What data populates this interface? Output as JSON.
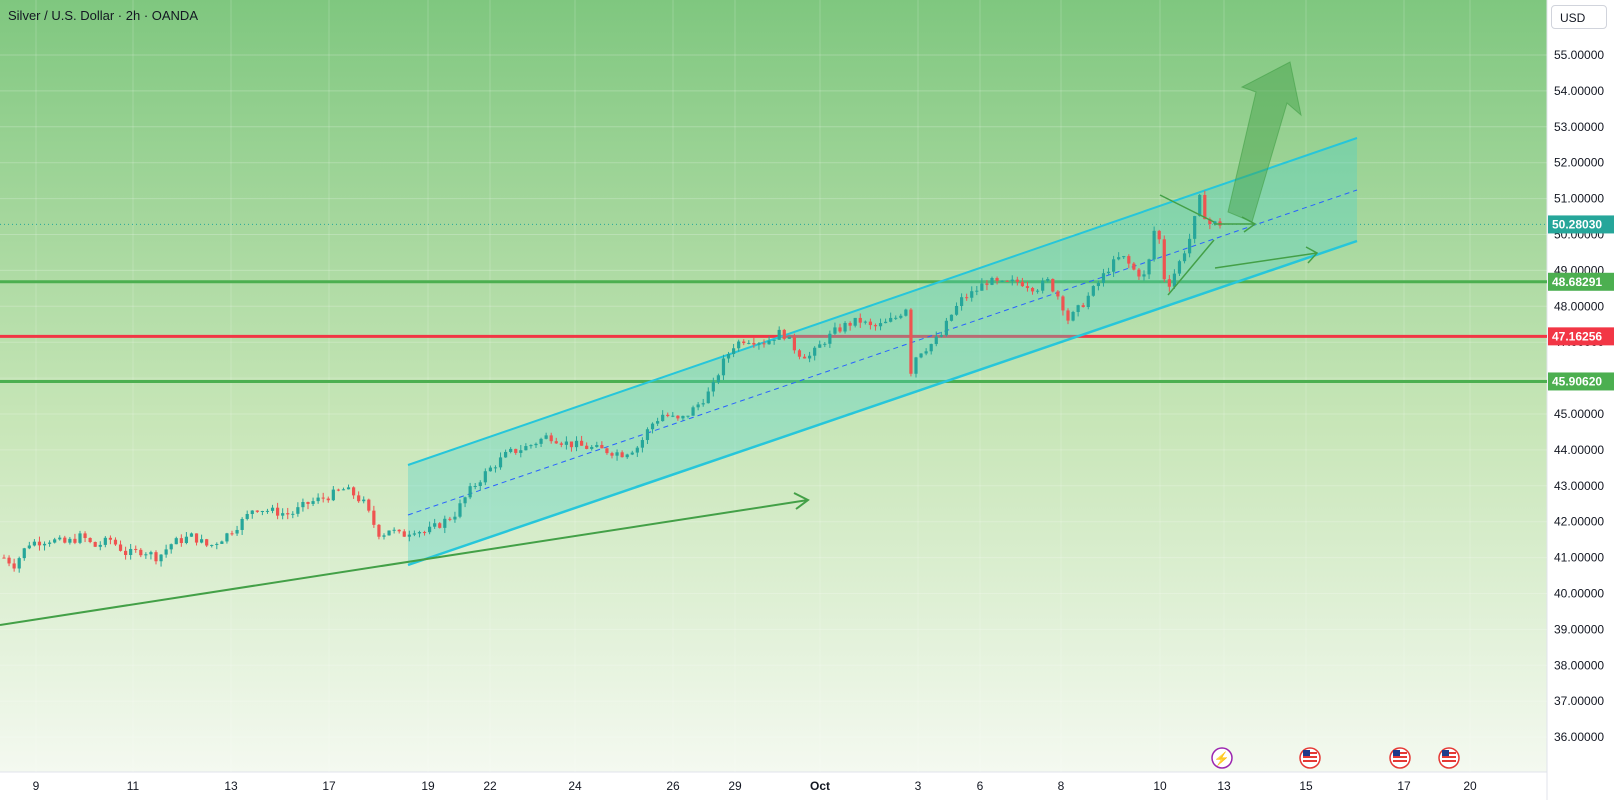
{
  "header": {
    "title": "Silver / U.S. Dollar · 2h · OANDA",
    "currency_button": "USD"
  },
  "colors": {
    "bg_top": "#7fc77f",
    "bg_bottom": "#f4f9f0",
    "channel": "#26c6da",
    "channel_fill": "#4dd0c8",
    "up_candle": "#26a69a",
    "down_candle": "#ef5350",
    "support_green": "#4caf50",
    "resistance_red": "#f23645",
    "arrow_green": "#43a047",
    "last_price_bg": "#26a69a"
  },
  "chart_data": {
    "type": "candlestick",
    "symbol": "Silver / U.S. Dollar",
    "interval": "2h",
    "source": "OANDA",
    "ylim": [
      35.8,
      56.0
    ],
    "y_ticks": [
      "55.00000",
      "54.00000",
      "53.00000",
      "52.00000",
      "51.00000",
      "50.00000",
      "49.00000",
      "48.00000",
      "47.00000",
      "46.00000",
      "45.00000",
      "44.00000",
      "43.00000",
      "42.00000",
      "41.00000",
      "40.00000",
      "39.00000",
      "38.00000",
      "37.00000",
      "36.00000"
    ],
    "x_ticks": [
      "9",
      "11",
      "13",
      "17",
      "19",
      "22",
      "24",
      "26",
      "29",
      "Oct",
      "3",
      "6",
      "8",
      "10",
      "13",
      "15",
      "17",
      "20"
    ],
    "price_labels": [
      {
        "value": 50.2803,
        "text": "50.28030",
        "kind": "last"
      },
      {
        "value": 48.68291,
        "text": "48.68291",
        "kind": "support"
      },
      {
        "value": 47.16256,
        "text": "47.16256",
        "kind": "resistance"
      },
      {
        "value": 45.9062,
        "text": "45.90620",
        "kind": "support"
      }
    ],
    "horizontal_lines": [
      {
        "value": 48.68291,
        "color": "#4caf50"
      },
      {
        "value": 47.16256,
        "color": "#f23645"
      },
      {
        "value": 45.9062,
        "color": "#4caf50"
      }
    ],
    "close_path": [
      [
        0,
        41.0
      ],
      [
        5,
        40.8
      ],
      [
        12,
        41.4
      ],
      [
        22,
        41.5
      ],
      [
        30,
        41.4
      ],
      [
        38,
        41.6
      ],
      [
        44,
        41.3
      ],
      [
        52,
        41.5
      ],
      [
        60,
        41.1
      ],
      [
        68,
        41.2
      ],
      [
        75,
        41.0
      ],
      [
        82,
        41.4
      ],
      [
        92,
        41.6
      ],
      [
        100,
        41.3
      ],
      [
        108,
        41.6
      ],
      [
        118,
        42.1
      ],
      [
        122,
        42.4
      ],
      [
        130,
        42.3
      ],
      [
        140,
        42.2
      ],
      [
        148,
        42.5
      ],
      [
        158,
        42.7
      ],
      [
        166,
        42.9
      ],
      [
        170,
        42.8
      ],
      [
        176,
        42.5
      ],
      [
        180,
        42.0
      ],
      [
        184,
        41.6
      ],
      [
        188,
        41.8
      ],
      [
        194,
        41.6
      ],
      [
        200,
        41.8
      ],
      [
        206,
        41.7
      ],
      [
        212,
        41.9
      ],
      [
        220,
        42.2
      ],
      [
        228,
        42.9
      ],
      [
        236,
        43.4
      ],
      [
        246,
        43.9
      ],
      [
        256,
        44.1
      ],
      [
        266,
        44.4
      ],
      [
        274,
        44.2
      ],
      [
        282,
        44.1
      ],
      [
        292,
        44.0
      ],
      [
        302,
        43.9
      ],
      [
        310,
        44.1
      ],
      [
        316,
        44.7
      ],
      [
        322,
        45.0
      ],
      [
        330,
        44.8
      ],
      [
        338,
        45.2
      ],
      [
        346,
        45.7
      ],
      [
        350,
        46.3
      ],
      [
        356,
        46.9
      ],
      [
        362,
        47.1
      ],
      [
        372,
        47.0
      ],
      [
        380,
        47.3
      ],
      [
        388,
        46.7
      ],
      [
        394,
        46.6
      ],
      [
        400,
        47.0
      ],
      [
        406,
        47.3
      ],
      [
        412,
        47.5
      ],
      [
        418,
        47.6
      ],
      [
        424,
        47.4
      ],
      [
        430,
        47.5
      ],
      [
        436,
        47.7
      ],
      [
        441,
        48.0
      ],
      [
        443,
        46.2
      ],
      [
        446,
        46.7
      ],
      [
        452,
        46.9
      ],
      [
        458,
        47.2
      ],
      [
        462,
        47.7
      ],
      [
        468,
        48.2
      ],
      [
        474,
        48.4
      ],
      [
        480,
        48.7
      ],
      [
        488,
        48.6
      ],
      [
        496,
        48.7
      ],
      [
        504,
        48.5
      ],
      [
        510,
        48.7
      ],
      [
        516,
        48.2
      ],
      [
        520,
        47.6
      ],
      [
        526,
        48.0
      ],
      [
        534,
        48.6
      ],
      [
        540,
        49.1
      ],
      [
        546,
        49.4
      ],
      [
        552,
        49.0
      ],
      [
        558,
        48.8
      ],
      [
        563,
        50.5
      ],
      [
        566,
        49.0
      ],
      [
        568,
        48.5
      ],
      [
        574,
        49.2
      ],
      [
        580,
        50.0
      ],
      [
        584,
        51.0
      ],
      [
        588,
        50.3
      ],
      [
        594,
        50.3
      ]
    ]
  }
}
